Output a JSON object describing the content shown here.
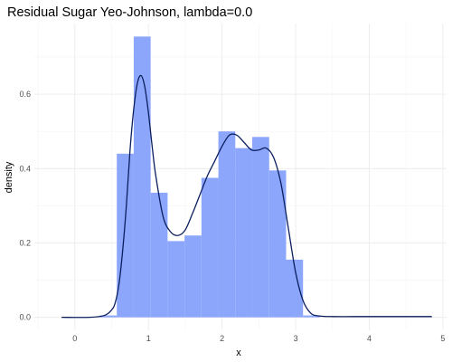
{
  "chart_data": {
    "type": "bar",
    "title": "Residual Sugar Yeo-Johnson, lambda=0.0",
    "xlabel": "x",
    "ylabel": "density",
    "xlim": [
      -0.55,
      5.05
    ],
    "ylim": [
      -0.035,
      0.79
    ],
    "x_ticks": [
      0,
      1,
      2,
      3,
      4,
      5
    ],
    "y_ticks": [
      0.0,
      0.2,
      0.4,
      0.6
    ],
    "x_tick_labels": [
      "0",
      "1",
      "2",
      "3",
      "4",
      "5"
    ],
    "y_tick_labels": [
      "0.0",
      "0.2",
      "0.4",
      "0.6"
    ],
    "grid": true,
    "legend": "none",
    "histogram": {
      "color": "#8ca6fc",
      "bins": [
        {
          "x0": 0.34,
          "x1": 0.57,
          "density": 0.005
        },
        {
          "x0": 0.57,
          "x1": 0.8,
          "density": 0.44
        },
        {
          "x0": 0.8,
          "x1": 1.03,
          "density": 0.755
        },
        {
          "x0": 1.03,
          "x1": 1.26,
          "density": 0.335
        },
        {
          "x0": 1.26,
          "x1": 1.49,
          "density": 0.205
        },
        {
          "x0": 1.49,
          "x1": 1.72,
          "density": 0.22
        },
        {
          "x0": 1.72,
          "x1": 1.95,
          "density": 0.375
        },
        {
          "x0": 1.95,
          "x1": 2.18,
          "density": 0.5
        },
        {
          "x0": 2.18,
          "x1": 2.41,
          "density": 0.455
        },
        {
          "x0": 2.41,
          "x1": 2.64,
          "density": 0.485
        },
        {
          "x0": 2.64,
          "x1": 2.87,
          "density": 0.395
        },
        {
          "x0": 2.87,
          "x1": 3.1,
          "density": 0.155
        },
        {
          "x0": 3.1,
          "x1": 3.33,
          "density": 0.005
        }
      ]
    },
    "density_curve": {
      "color": "#0b1f5e",
      "x": [
        -0.18,
        0.2,
        0.4,
        0.5,
        0.55,
        0.6,
        0.65,
        0.7,
        0.75,
        0.8,
        0.85,
        0.9,
        0.95,
        1.0,
        1.05,
        1.1,
        1.2,
        1.3,
        1.4,
        1.5,
        1.6,
        1.7,
        1.8,
        1.9,
        2.0,
        2.1,
        2.2,
        2.3,
        2.4,
        2.5,
        2.6,
        2.7,
        2.8,
        2.9,
        3.0,
        3.1,
        3.2,
        3.3,
        3.5,
        4.0,
        4.85
      ],
      "y": [
        0.0,
        0.0,
        0.005,
        0.02,
        0.04,
        0.09,
        0.18,
        0.3,
        0.45,
        0.56,
        0.63,
        0.65,
        0.62,
        0.55,
        0.46,
        0.38,
        0.27,
        0.23,
        0.22,
        0.235,
        0.28,
        0.33,
        0.38,
        0.42,
        0.46,
        0.49,
        0.49,
        0.47,
        0.45,
        0.45,
        0.455,
        0.43,
        0.36,
        0.24,
        0.12,
        0.045,
        0.012,
        0.004,
        0.002,
        0.002,
        0.002
      ]
    }
  }
}
